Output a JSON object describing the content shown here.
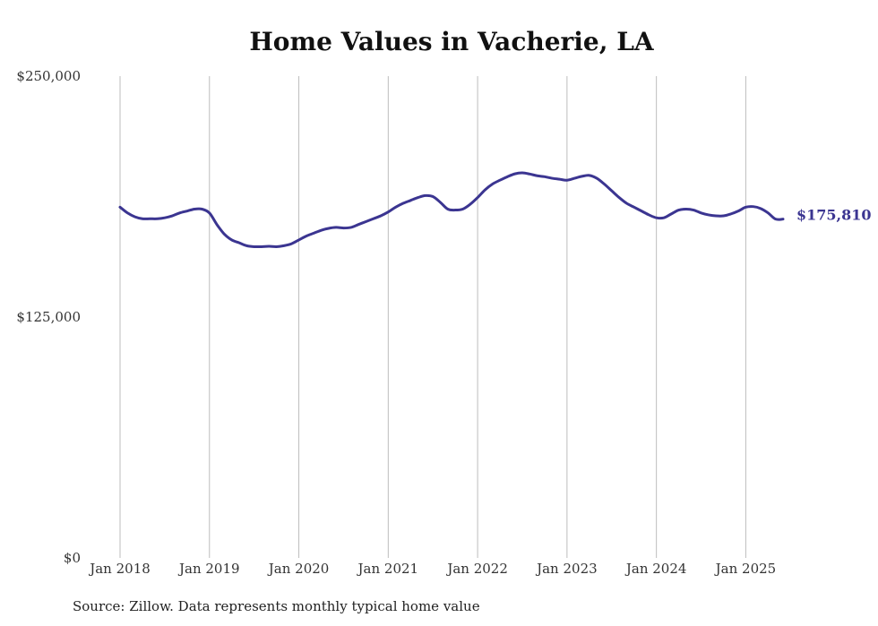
{
  "chart_data": {
    "type": "line",
    "title": "Home Values in Vacherie, LA",
    "xlabel": "",
    "ylabel": "",
    "ylim": [
      0,
      250000
    ],
    "y_ticks": [
      {
        "value": 0,
        "label": "$0"
      },
      {
        "value": 125000,
        "label": "$125,000"
      },
      {
        "value": 250000,
        "label": "$250,000"
      }
    ],
    "x_ticks": [
      {
        "value": "2018-01",
        "label": "Jan 2018"
      },
      {
        "value": "2019-01",
        "label": "Jan 2019"
      },
      {
        "value": "2020-01",
        "label": "Jan 2020"
      },
      {
        "value": "2021-01",
        "label": "Jan 2021"
      },
      {
        "value": "2022-01",
        "label": "Jan 2022"
      },
      {
        "value": "2023-01",
        "label": "Jan 2023"
      },
      {
        "value": "2024-01",
        "label": "Jan 2024"
      },
      {
        "value": "2025-01",
        "label": "Jan 2025"
      }
    ],
    "x_range": [
      "2018-01",
      "2025-06"
    ],
    "grid": {
      "vertical": true,
      "horizontal": false
    },
    "line_color": "#3b3591",
    "end_label": "$175,810",
    "series": [
      {
        "x": [
          "2018-01",
          "2018-02",
          "2018-03",
          "2018-04",
          "2018-05",
          "2018-06",
          "2018-07",
          "2018-08",
          "2018-09",
          "2018-10",
          "2018-11",
          "2018-12",
          "2019-01",
          "2019-02",
          "2019-03",
          "2019-04",
          "2019-05",
          "2019-06",
          "2019-07",
          "2019-08",
          "2019-09",
          "2019-10",
          "2019-11",
          "2019-12",
          "2020-01",
          "2020-02",
          "2020-03",
          "2020-04",
          "2020-05",
          "2020-06",
          "2020-07",
          "2020-08",
          "2020-09",
          "2020-10",
          "2020-11",
          "2020-12",
          "2021-01",
          "2021-02",
          "2021-03",
          "2021-04",
          "2021-05",
          "2021-06",
          "2021-07",
          "2021-08",
          "2021-09",
          "2021-10",
          "2021-11",
          "2021-12",
          "2022-01",
          "2022-02",
          "2022-03",
          "2022-04",
          "2022-05",
          "2022-06",
          "2022-07",
          "2022-08",
          "2022-09",
          "2022-10",
          "2022-11",
          "2022-12",
          "2023-01",
          "2023-02",
          "2023-03",
          "2023-04",
          "2023-05",
          "2023-06",
          "2023-07",
          "2023-08",
          "2023-09",
          "2023-10",
          "2023-11",
          "2023-12",
          "2024-01",
          "2024-02",
          "2024-03",
          "2024-04",
          "2024-05",
          "2024-06",
          "2024-07",
          "2024-08",
          "2024-09",
          "2024-10",
          "2024-11",
          "2024-12",
          "2025-01",
          "2025-02",
          "2025-03",
          "2025-04",
          "2025-05",
          "2025-06"
        ],
        "values": [
          182000,
          179000,
          177000,
          176000,
          176000,
          176000,
          176500,
          177500,
          179000,
          180000,
          181000,
          181000,
          179000,
          173000,
          168000,
          165000,
          163500,
          162000,
          161500,
          161500,
          161700,
          161500,
          162000,
          163000,
          165000,
          167000,
          168500,
          170000,
          171000,
          171500,
          171200,
          171500,
          173000,
          174500,
          176000,
          177500,
          179500,
          182000,
          184000,
          185500,
          187000,
          188000,
          187500,
          184500,
          181000,
          180500,
          181000,
          183500,
          187000,
          191000,
          194000,
          196000,
          197800,
          199300,
          199800,
          199200,
          198300,
          197800,
          197000,
          196500,
          196000,
          197000,
          198000,
          198500,
          197000,
          194000,
          190500,
          187000,
          184000,
          182000,
          180000,
          178000,
          176500,
          176500,
          178500,
          180500,
          181000,
          180500,
          179000,
          178000,
          177500,
          177500,
          178500,
          180000,
          182000,
          182300,
          181300,
          179000,
          175810,
          175810
        ]
      }
    ]
  },
  "source": "Source: Zillow. Data represents monthly typical home value"
}
